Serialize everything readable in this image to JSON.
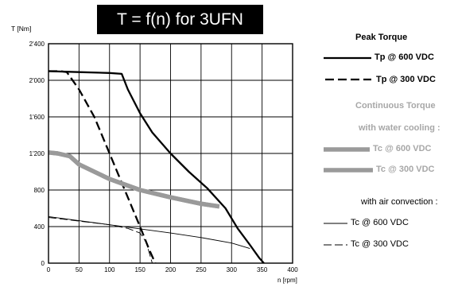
{
  "chart_data": {
    "type": "line",
    "title": "T = f(n) for 3UFN",
    "ylabel": "T [Nm]",
    "xlabel": "n [rpm]",
    "xlim": [
      0,
      400
    ],
    "ylim": [
      0,
      2400
    ],
    "x_ticks": [
      "0",
      "50",
      "100",
      "150",
      "200",
      "250",
      "300",
      "350",
      "400"
    ],
    "y_ticks": [
      "0",
      "400",
      "800",
      "1'200",
      "1'600",
      "2'000",
      "2'400"
    ],
    "grid": true,
    "legend_position": "right",
    "colors": {
      "black": "#000000",
      "grey": "#9a9a9a"
    },
    "legend_headings": {
      "peak": "Peak Torque",
      "continuous": "Continuous Torque",
      "water": "with water cooling :",
      "air": "with air convection :"
    },
    "series": [
      {
        "name": "Tp @ 600 VDC",
        "style": "thick-solid",
        "color": "#000000",
        "x": [
          0,
          50,
          100,
          120,
          130,
          150,
          170,
          200,
          230,
          260,
          290,
          310,
          330,
          345,
          353
        ],
        "y": [
          2100,
          2090,
          2080,
          2070,
          1900,
          1640,
          1430,
          1200,
          1000,
          820,
          600,
          380,
          200,
          60,
          0
        ]
      },
      {
        "name": "Tp @ 300 VDC",
        "style": "thick-dashed",
        "color": "#000000",
        "x": [
          0,
          20,
          30,
          50,
          75,
          100,
          125,
          150,
          165,
          175
        ],
        "y": [
          2100,
          2100,
          2090,
          1900,
          1600,
          1200,
          800,
          400,
          150,
          0
        ]
      },
      {
        "name": "Tc @ 600 VDC",
        "style": "wide-solid",
        "color": "#9a9a9a",
        "x": [
          0,
          15,
          35,
          50,
          100,
          150,
          200,
          250,
          280
        ],
        "y": [
          1210,
          1200,
          1170,
          1080,
          920,
          800,
          720,
          650,
          620
        ]
      },
      {
        "name": "Tc @ 300 VDC",
        "style": "wide-solid",
        "color": "#9a9a9a",
        "x": [
          0,
          15,
          35,
          50,
          100,
          150,
          200,
          250,
          280
        ],
        "y": [
          1210,
          1200,
          1170,
          1080,
          920,
          800,
          720,
          650,
          620
        ]
      },
      {
        "name": "Tc @ 600 VDC",
        "style": "thin-solid",
        "color": "#000000",
        "x": [
          0,
          100,
          200,
          250,
          300,
          330
        ],
        "y": [
          510,
          420,
          330,
          280,
          220,
          160
        ]
      },
      {
        "name": "Tc @ 300 VDC",
        "style": "thin-dashed",
        "color": "#000000",
        "x": [
          0,
          50,
          100,
          130,
          150,
          160,
          170
        ],
        "y": [
          500,
          460,
          420,
          380,
          330,
          230,
          0
        ]
      }
    ]
  }
}
